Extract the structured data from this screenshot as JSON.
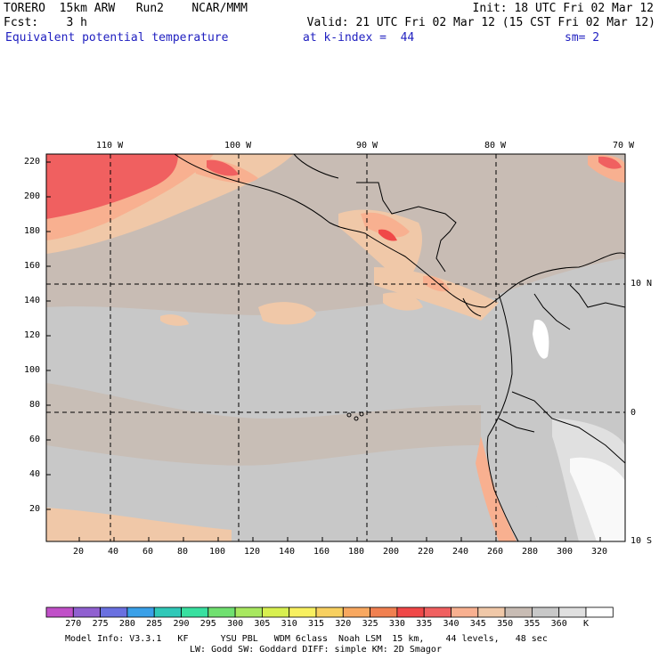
{
  "header": {
    "line1_left": "TORERO  15km ARW   Run2    NCAR/MMM",
    "line1_right": "Init: 18 UTC Fri 02 Mar 12",
    "line2_left": "Fcst:    3 h",
    "line2_right": "Valid: 21 UTC Fri 02 Mar 12 (15 CST Fri 02 Mar 12)",
    "field": "Equivalent potential temperature",
    "kindex": "at k-index =  44",
    "smooth": "sm= 2"
  },
  "map": {
    "top_lon_labels": [
      "110 W",
      "100 W",
      "90 W",
      "80 W",
      "70 W"
    ],
    "right_lat_labels": [
      "10 N",
      "0",
      "10 S"
    ],
    "left_ticks": [
      "220",
      "200",
      "180",
      "160",
      "140",
      "120",
      "100",
      "80",
      "60",
      "40",
      "20"
    ],
    "bottom_ticks": [
      "20",
      "40",
      "60",
      "80",
      "100",
      "120",
      "140",
      "160",
      "180",
      "200",
      "220",
      "240",
      "260",
      "280",
      "300",
      "320"
    ]
  },
  "colorbar": {
    "colors": [
      "#c050c8",
      "#9060d0",
      "#6a70e0",
      "#3aa0e8",
      "#30c8b8",
      "#38e0a0",
      "#70e070",
      "#a8e860",
      "#d8f050",
      "#f8f060",
      "#f8d060",
      "#f8a860",
      "#f08050",
      "#f04848",
      "#f06060",
      "#f8b090",
      "#f0c8a8",
      "#c8bcb4",
      "#c8c8c8",
      "#e0e0e0",
      "#ffffff"
    ],
    "labels": [
      "270",
      "275",
      "280",
      "285",
      "290",
      "295",
      "300",
      "305",
      "310",
      "315",
      "320",
      "325",
      "330",
      "335",
      "340",
      "345",
      "350",
      "355",
      "360",
      "K"
    ]
  },
  "footer": {
    "line1": "Model Info: V3.3.1   KF      YSU PBL   WDM 6class  Noah LSM  15 km,    44 levels,   48 sec",
    "line2": "LW: Godd SW: Goddard DIFF: simple KM: 2D Smagor"
  }
}
